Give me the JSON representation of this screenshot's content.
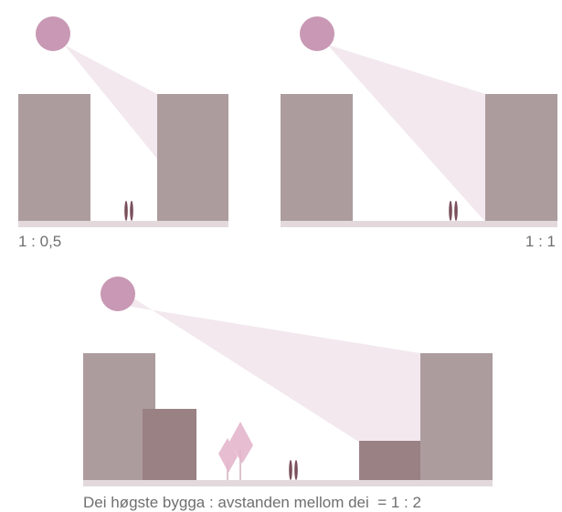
{
  "diagrams": [
    {
      "ratio_label": "1 : 0,5"
    },
    {
      "ratio_label": "1 : 1"
    },
    {
      "caption": "Dei høgste bygga : avstanden mellom dei  = 1 : 2"
    }
  ],
  "colors": {
    "sun": "#c898b4",
    "light_beam": "#f2e8ee",
    "tall_building": "#ac9c9e",
    "low_building": "#9a8184",
    "ground": "#e3d9dc",
    "people": "#7a4f5c",
    "tree_leaves": "#e3b6cc",
    "tree_trunk": "#dcc4cc"
  },
  "icons": [
    "sun-icon",
    "person-icon",
    "tree-icon"
  ]
}
